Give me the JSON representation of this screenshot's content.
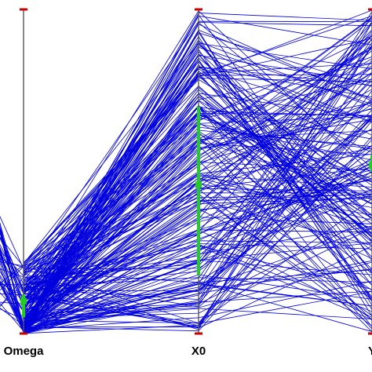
{
  "chart_data": {
    "type": "line",
    "subtype": "parallel-coordinates",
    "title": "",
    "axes": [
      {
        "name": "Omega",
        "label": "Omega"
      },
      {
        "name": "X0",
        "label": "X0"
      },
      {
        "name": "Y",
        "label": "Y"
      }
    ],
    "axis_ranges": [
      [
        0,
        1
      ],
      [
        0,
        1
      ],
      [
        0,
        1
      ]
    ],
    "line_color": "#0000dd",
    "axis_color": "#555555",
    "axis_cap_color": "#cc0000",
    "highlight_color": "#22cc22",
    "highlight_ranges": [
      [
        0.05,
        0.12
      ],
      [
        0.18,
        0.7
      ],
      [
        0.5,
        0.55
      ]
    ],
    "highlight_markers": [
      0.1,
      0.46,
      0.52
    ],
    "series_count": 220,
    "series": [
      {
        "values": [
          0.02,
          0.98,
          0.89
        ]
      },
      {
        "values": [
          0.05,
          0.96,
          0.95
        ]
      },
      {
        "values": [
          0.01,
          0.9,
          0.7
        ]
      },
      {
        "values": [
          0.08,
          0.85,
          0.42
        ]
      },
      {
        "values": [
          0.03,
          0.8,
          0.98
        ]
      },
      {
        "values": [
          0.12,
          0.76,
          0.3
        ]
      },
      {
        "values": [
          0.04,
          0.7,
          0.6
        ]
      },
      {
        "values": [
          0.06,
          0.62,
          0.15
        ]
      },
      {
        "values": [
          0.02,
          0.55,
          0.82
        ]
      },
      {
        "values": [
          0.1,
          0.48,
          0.35
        ]
      },
      {
        "values": [
          0.01,
          0.4,
          0.92
        ]
      },
      {
        "values": [
          0.07,
          0.32,
          0.05
        ]
      },
      {
        "values": [
          0.15,
          0.24,
          0.66
        ]
      },
      {
        "values": [
          0.03,
          0.16,
          0.5
        ]
      },
      {
        "values": [
          0.05,
          0.08,
          0.22
        ]
      },
      {
        "values": [
          0.02,
          0.02,
          0.75
        ]
      },
      {
        "values": [
          0.2,
          0.6,
          0.88
        ]
      },
      {
        "values": [
          0.0,
          0.93,
          0.1
        ]
      },
      {
        "values": [
          0.09,
          0.35,
          0.58
        ]
      },
      {
        "values": [
          0.04,
          0.72,
          0.4
        ]
      }
    ]
  }
}
